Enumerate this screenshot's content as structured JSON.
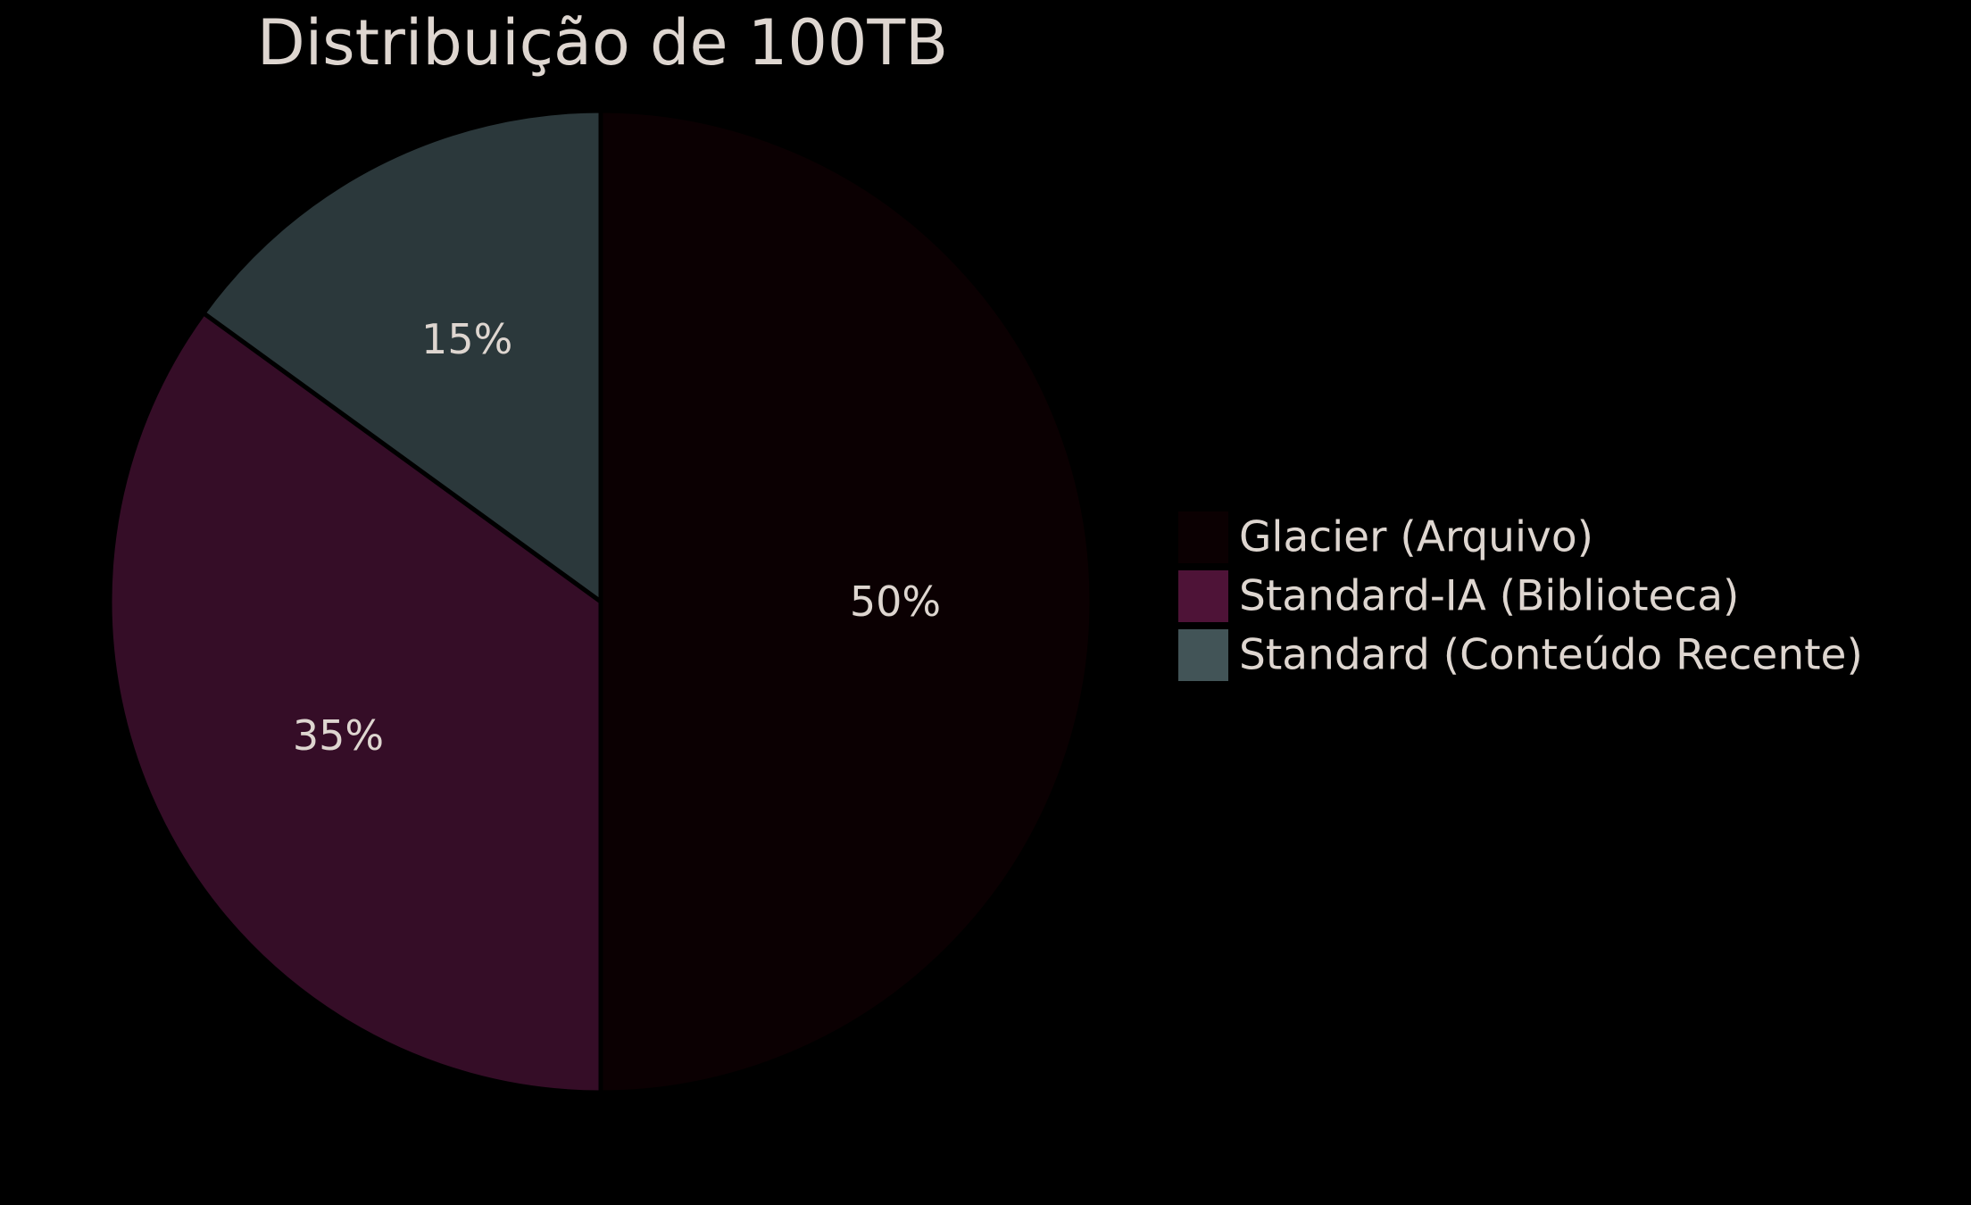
{
  "chart_data": {
    "type": "pie",
    "title": "Distribuição de 100TB",
    "slices": [
      {
        "label": "Glacier (Arquivo)",
        "value": 50,
        "display": "50%",
        "color": "#0b0002",
        "legend_color": "#0b0002"
      },
      {
        "label": "Standard-IA (Biblioteca)",
        "value": 35,
        "display": "35%",
        "color": "#350d27",
        "legend_color": "#4e1337"
      },
      {
        "label": "Standard (Conteúdo Recente)",
        "value": 15,
        "display": "15%",
        "color": "#2b383b",
        "legend_color": "#425457"
      }
    ],
    "start_position": "top",
    "direction": "clockwise",
    "legend_position": "right",
    "colors": {
      "background": "#000000",
      "text": "#ded6d0",
      "slice_edge": "#000000"
    }
  }
}
